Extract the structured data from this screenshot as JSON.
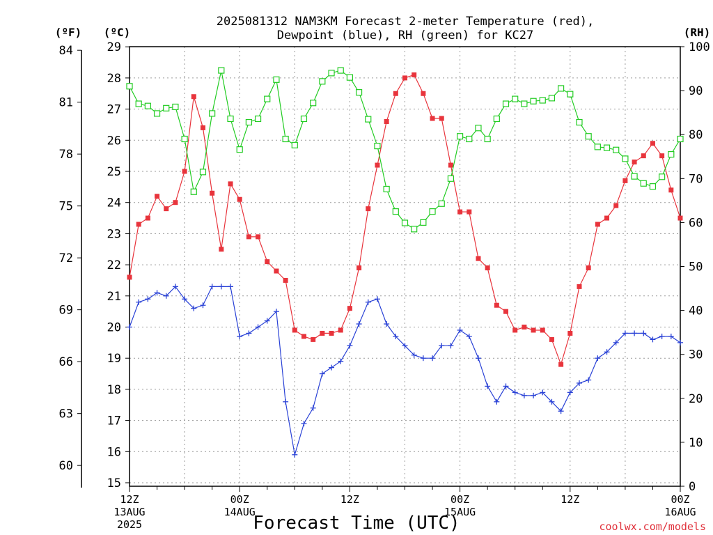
{
  "chart_data": {
    "type": "line",
    "title": [
      "2025081312 NAM3KM Forecast 2-meter Temperature (red),",
      "Dewpoint (blue), RH (green) for KC27"
    ],
    "xlabel": "Forecast Time (UTC)",
    "credit": "coolwx.com/models",
    "units": {
      "fahrenheit": "(ºF)",
      "celsius": "(ºC)",
      "rh": "(RH)"
    },
    "x_ticks": [
      {
        "hour": 0,
        "lines": [
          "12Z",
          "13AUG",
          "2025"
        ]
      },
      {
        "hour": 12,
        "lines": [
          "00Z",
          "14AUG"
        ]
      },
      {
        "hour": 24,
        "lines": [
          "12Z"
        ]
      },
      {
        "hour": 36,
        "lines": [
          "00Z",
          "15AUG"
        ]
      },
      {
        "hour": 48,
        "lines": [
          "12Z"
        ]
      },
      {
        "hour": 60,
        "lines": [
          "00Z",
          "16AUG"
        ]
      }
    ],
    "x_range": [
      0,
      60
    ],
    "y_celsius": {
      "range": [
        15,
        29
      ],
      "ticks": [
        15,
        16,
        17,
        18,
        19,
        20,
        21,
        22,
        23,
        24,
        25,
        26,
        27,
        28,
        29
      ]
    },
    "y_fahrenheit": {
      "ticks": [
        60,
        63,
        66,
        69,
        72,
        75,
        78,
        81,
        84
      ]
    },
    "y_rh": {
      "range": [
        0,
        100
      ],
      "ticks": [
        0,
        10,
        20,
        30,
        40,
        50,
        60,
        70,
        80,
        90,
        100
      ]
    },
    "grid": true,
    "series": [
      {
        "name": "Temperature",
        "axis": "celsius",
        "color": "#e8343c",
        "marker": "filled-square",
        "hours": [
          0,
          1,
          2,
          3,
          4,
          5,
          6,
          7,
          8,
          9,
          10,
          11,
          12,
          13,
          14,
          15,
          16,
          17,
          18,
          19,
          20,
          21,
          22,
          23,
          24,
          25,
          26,
          27,
          28,
          29,
          30,
          31,
          32,
          33,
          34,
          35,
          36,
          37,
          38,
          39,
          40,
          41,
          42,
          43,
          44,
          45,
          46,
          47,
          48,
          49,
          50,
          51,
          52,
          53,
          54,
          55,
          56,
          57,
          58,
          59,
          60
        ],
        "values": [
          21.6,
          23.3,
          23.5,
          24.2,
          23.8,
          24.0,
          25.0,
          27.4,
          26.4,
          24.3,
          22.5,
          24.6,
          24.1,
          22.9,
          22.9,
          22.1,
          21.8,
          21.5,
          19.9,
          19.7,
          19.6,
          19.8,
          19.8,
          19.9,
          20.6,
          21.9,
          23.8,
          25.2,
          26.6,
          27.5,
          28.0,
          28.1,
          27.5,
          26.7,
          26.7,
          25.2,
          23.7,
          23.7,
          22.2,
          21.9,
          20.7,
          20.5,
          19.9,
          20.0,
          19.9,
          19.9,
          19.6,
          18.8,
          19.8,
          21.3,
          21.9,
          23.3,
          23.5,
          23.9,
          24.7,
          25.3,
          25.5,
          25.9,
          25.5,
          24.4,
          23.5
        ]
      },
      {
        "name": "Dewpoint",
        "axis": "celsius",
        "color": "#2a42d6",
        "marker": "plus",
        "hours": [
          0,
          1,
          2,
          3,
          4,
          5,
          6,
          7,
          8,
          9,
          10,
          11,
          12,
          13,
          14,
          15,
          16,
          17,
          18,
          19,
          20,
          21,
          22,
          23,
          24,
          25,
          26,
          27,
          28,
          29,
          30,
          31,
          32,
          33,
          34,
          35,
          36,
          37,
          38,
          39,
          40,
          41,
          42,
          43,
          44,
          45,
          46,
          47,
          48,
          49,
          50,
          51,
          52,
          53,
          54,
          55,
          56,
          57,
          58,
          59,
          60
        ],
        "values": [
          20.0,
          20.8,
          20.9,
          21.1,
          21.0,
          21.3,
          20.9,
          20.6,
          20.7,
          21.3,
          21.3,
          21.3,
          19.7,
          19.8,
          20.0,
          20.2,
          20.5,
          17.6,
          15.9,
          16.9,
          17.4,
          18.5,
          18.7,
          18.9,
          19.4,
          20.1,
          20.8,
          20.9,
          20.1,
          19.7,
          19.4,
          19.1,
          19.0,
          19.0,
          19.4,
          19.4,
          19.9,
          19.7,
          19.0,
          18.1,
          17.6,
          18.1,
          17.9,
          17.8,
          17.8,
          17.9,
          17.6,
          17.3,
          17.9,
          18.2,
          18.3,
          19.0,
          19.2,
          19.5,
          19.8,
          19.8,
          19.8,
          19.6,
          19.7,
          19.7,
          19.5
        ]
      },
      {
        "name": "RH",
        "axis": "rh",
        "color": "#22cc22",
        "marker": "open-square",
        "hours": [
          0,
          1,
          2,
          3,
          4,
          5,
          6,
          7,
          8,
          9,
          10,
          11,
          12,
          13,
          14,
          15,
          16,
          17,
          18,
          19,
          20,
          21,
          22,
          23,
          24,
          25,
          26,
          27,
          28,
          29,
          30,
          31,
          32,
          33,
          34,
          35,
          36,
          37,
          38,
          39,
          40,
          41,
          42,
          43,
          44,
          45,
          46,
          47,
          48,
          49,
          50,
          51,
          52,
          53,
          54,
          55,
          56,
          57,
          58,
          59,
          60
        ],
        "values": [
          91,
          87,
          86.5,
          84.8,
          86,
          86.3,
          79,
          67,
          71.5,
          84.8,
          94.6,
          83.6,
          76.6,
          82.8,
          83.6,
          88.1,
          92.5,
          79,
          77.6,
          83.6,
          87.2,
          92.1,
          94,
          94.6,
          93,
          89.6,
          83.5,
          77.4,
          67.6,
          62.5,
          59.9,
          58.5,
          60,
          62.5,
          64.3,
          70,
          79.6,
          79,
          81.5,
          79,
          83.6,
          87,
          88.1,
          87,
          87.6,
          87.8,
          88.3,
          90.5,
          89.2,
          82.8,
          79.6,
          77.2,
          77,
          76.5,
          74.5,
          70.5,
          68.9,
          68.2,
          70.4,
          75.5,
          79
        ]
      }
    ]
  }
}
